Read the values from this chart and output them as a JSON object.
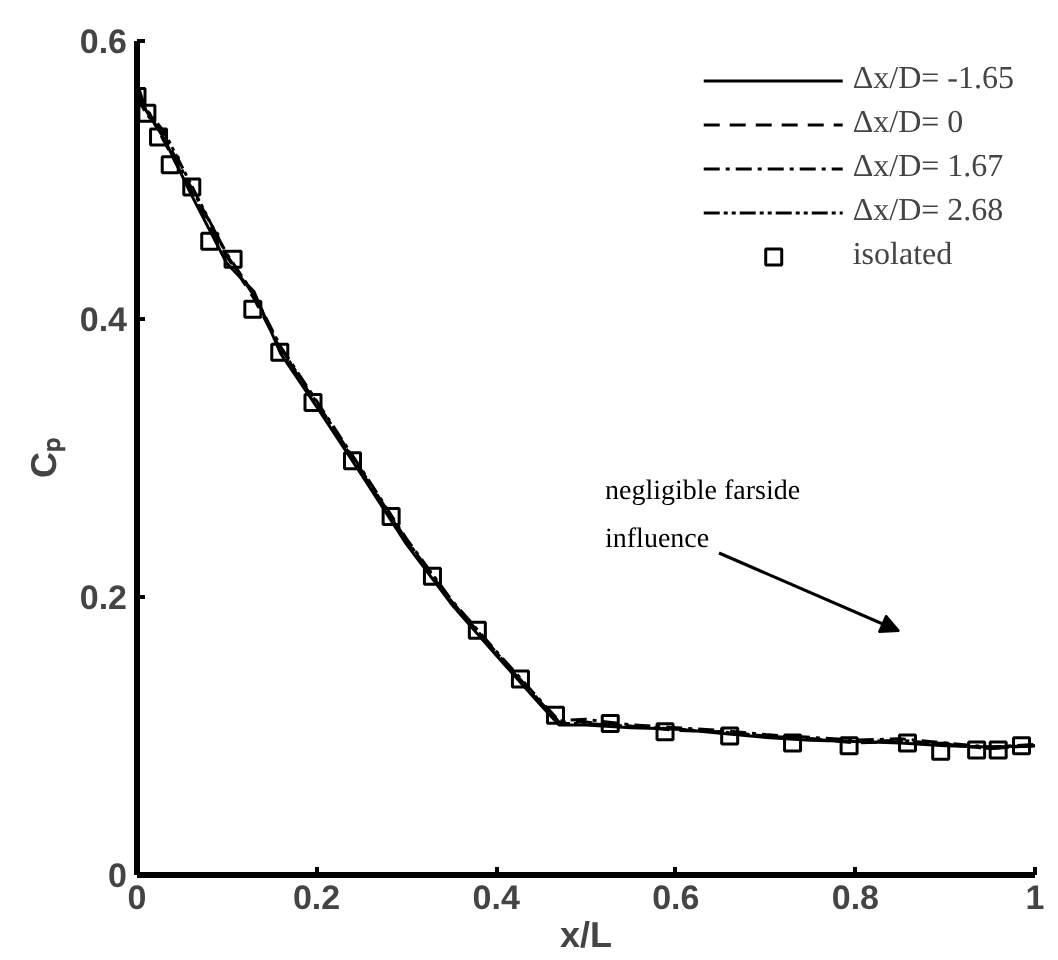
{
  "chart_data": {
    "type": "line",
    "xlabel": "x/L",
    "ylabel": "Cₚ",
    "xlim": [
      0,
      1
    ],
    "ylim": [
      0,
      0.6
    ],
    "xticks": [
      0,
      0.2,
      0.4,
      0.6,
      0.8,
      1
    ],
    "yticks": [
      0,
      0.2,
      0.4,
      0.6
    ],
    "grid": false,
    "legend": "top right",
    "series": [
      {
        "name": "Δx/D= -1.65",
        "color": "#000000",
        "line_style": "solid",
        "x": [
          0,
          0.01,
          0.03,
          0.06,
          0.1,
          0.13,
          0.16,
          0.2,
          0.25,
          0.3,
          0.35,
          0.4,
          0.45,
          0.47,
          0.5,
          0.55,
          0.6,
          0.65,
          0.7,
          0.75,
          0.8,
          0.85,
          0.9,
          0.95,
          1.0
        ],
        "values": [
          0.57,
          0.55,
          0.53,
          0.49,
          0.44,
          0.42,
          0.375,
          0.337,
          0.288,
          0.238,
          0.195,
          0.158,
          0.122,
          0.108,
          0.108,
          0.106,
          0.105,
          0.102,
          0.099,
          0.097,
          0.096,
          0.095,
          0.093,
          0.092,
          0.093
        ]
      },
      {
        "name": "Δx/D= 0",
        "color": "#000000",
        "line_style": "dashed",
        "x": [
          0,
          0.01,
          0.03,
          0.06,
          0.1,
          0.13,
          0.16,
          0.2,
          0.25,
          0.3,
          0.35,
          0.4,
          0.45,
          0.47,
          0.5,
          0.55,
          0.6,
          0.65,
          0.7,
          0.75,
          0.8,
          0.85,
          0.9,
          0.95,
          1.0
        ],
        "values": [
          0.565,
          0.553,
          0.528,
          0.492,
          0.445,
          0.415,
          0.378,
          0.339,
          0.29,
          0.24,
          0.197,
          0.16,
          0.124,
          0.11,
          0.11,
          0.107,
          0.104,
          0.103,
          0.1,
          0.098,
          0.095,
          0.096,
          0.094,
          0.091,
          0.093
        ]
      },
      {
        "name": "Δx/D= 1.67",
        "color": "#000000",
        "line_style": "dashdot",
        "x": [
          0,
          0.01,
          0.03,
          0.06,
          0.1,
          0.13,
          0.16,
          0.2,
          0.25,
          0.3,
          0.35,
          0.4,
          0.45,
          0.47,
          0.5,
          0.55,
          0.6,
          0.65,
          0.7,
          0.75,
          0.8,
          0.85,
          0.9,
          0.95,
          1.0
        ],
        "values": [
          0.56,
          0.548,
          0.532,
          0.495,
          0.447,
          0.418,
          0.38,
          0.341,
          0.292,
          0.242,
          0.198,
          0.161,
          0.125,
          0.111,
          0.112,
          0.108,
          0.106,
          0.104,
          0.101,
          0.099,
          0.097,
          0.098,
          0.095,
          0.092,
          0.094
        ]
      },
      {
        "name": "Δx/D= 2.68",
        "color": "#000000",
        "line_style": "dashdotdot",
        "x": [
          0,
          0.01,
          0.03,
          0.06,
          0.1,
          0.13,
          0.16,
          0.2,
          0.25,
          0.3,
          0.35,
          0.4,
          0.45,
          0.47,
          0.5,
          0.55,
          0.6,
          0.65,
          0.7,
          0.75,
          0.8,
          0.85,
          0.9,
          0.95,
          1.0
        ],
        "values": [
          0.562,
          0.551,
          0.535,
          0.497,
          0.446,
          0.417,
          0.379,
          0.34,
          0.291,
          0.241,
          0.197,
          0.16,
          0.123,
          0.109,
          0.109,
          0.107,
          0.105,
          0.103,
          0.1,
          0.098,
          0.096,
          0.097,
          0.094,
          0.091,
          0.093
        ]
      },
      {
        "name": "isolated",
        "type": "scatter",
        "marker": "square",
        "color": "#000000",
        "x": [
          0,
          0.011,
          0.024,
          0.037,
          0.061,
          0.081,
          0.107,
          0.129,
          0.159,
          0.196,
          0.24,
          0.283,
          0.329,
          0.379,
          0.427,
          0.466,
          0.527,
          0.588,
          0.66,
          0.73,
          0.793,
          0.858,
          0.895,
          0.935,
          0.959,
          0.985
        ],
        "values": [
          0.56,
          0.548,
          0.531,
          0.511,
          0.495,
          0.456,
          0.443,
          0.407,
          0.376,
          0.34,
          0.298,
          0.258,
          0.215,
          0.176,
          0.141,
          0.115,
          0.109,
          0.103,
          0.1,
          0.095,
          0.093,
          0.095,
          0.089,
          0.09,
          0.09,
          0.093
        ]
      }
    ],
    "annotations": [
      "negligible farside\ninfluence"
    ]
  }
}
